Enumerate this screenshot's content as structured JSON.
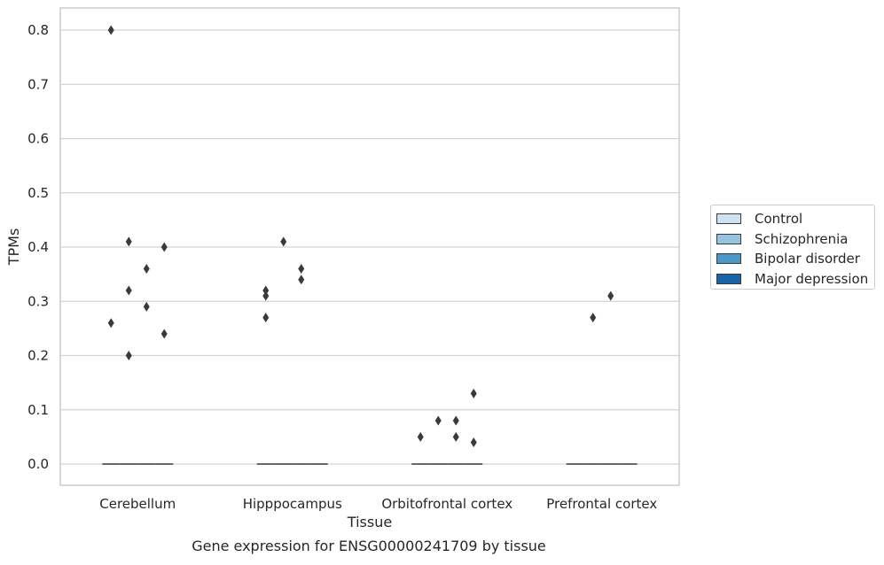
{
  "chart_data": {
    "type": "box",
    "title": "",
    "xlabel": "Tissue",
    "ylabel": "TPMs",
    "caption": "Gene expression for ENSG00000241709 by tissue",
    "ylim": [
      -0.04,
      0.84
    ],
    "yticks": [
      "0.0",
      "0.1",
      "0.2",
      "0.3",
      "0.4",
      "0.5",
      "0.6",
      "0.7",
      "0.8"
    ],
    "grid": true,
    "legend_position": "right",
    "categories": [
      "Cerebellum",
      "Hipppocampus",
      "Orbitofrontal cortex",
      "Prefrontal cortex"
    ],
    "series": [
      {
        "name": "Control",
        "color": "#d0e1f2",
        "median": [
          0,
          0,
          0,
          0
        ],
        "outliers": [
          [
            0.8,
            0.26
          ],
          [
            0.27,
            0.31,
            0.32
          ],
          [
            0.05
          ],
          []
        ]
      },
      {
        "name": "Schizophrenia",
        "color": "#94c4df",
        "median": [
          0,
          0,
          0,
          0
        ],
        "outliers": [
          [
            0.41,
            0.32,
            0.2
          ],
          [
            0.41
          ],
          [
            0.08
          ],
          [
            0.27
          ]
        ]
      },
      {
        "name": "Bipolar disorder",
        "color": "#4a98c9",
        "median": [
          0,
          0,
          0,
          0
        ],
        "outliers": [
          [
            0.36,
            0.29
          ],
          [
            0.36,
            0.34
          ],
          [
            0.08,
            0.05
          ],
          [
            0.31
          ]
        ]
      },
      {
        "name": "Major depression",
        "color": "#1764ab",
        "median": [
          0,
          0,
          0,
          0
        ],
        "outliers": [
          [
            0.4,
            0.24
          ],
          [],
          [
            0.13,
            0.04
          ],
          []
        ]
      }
    ]
  }
}
